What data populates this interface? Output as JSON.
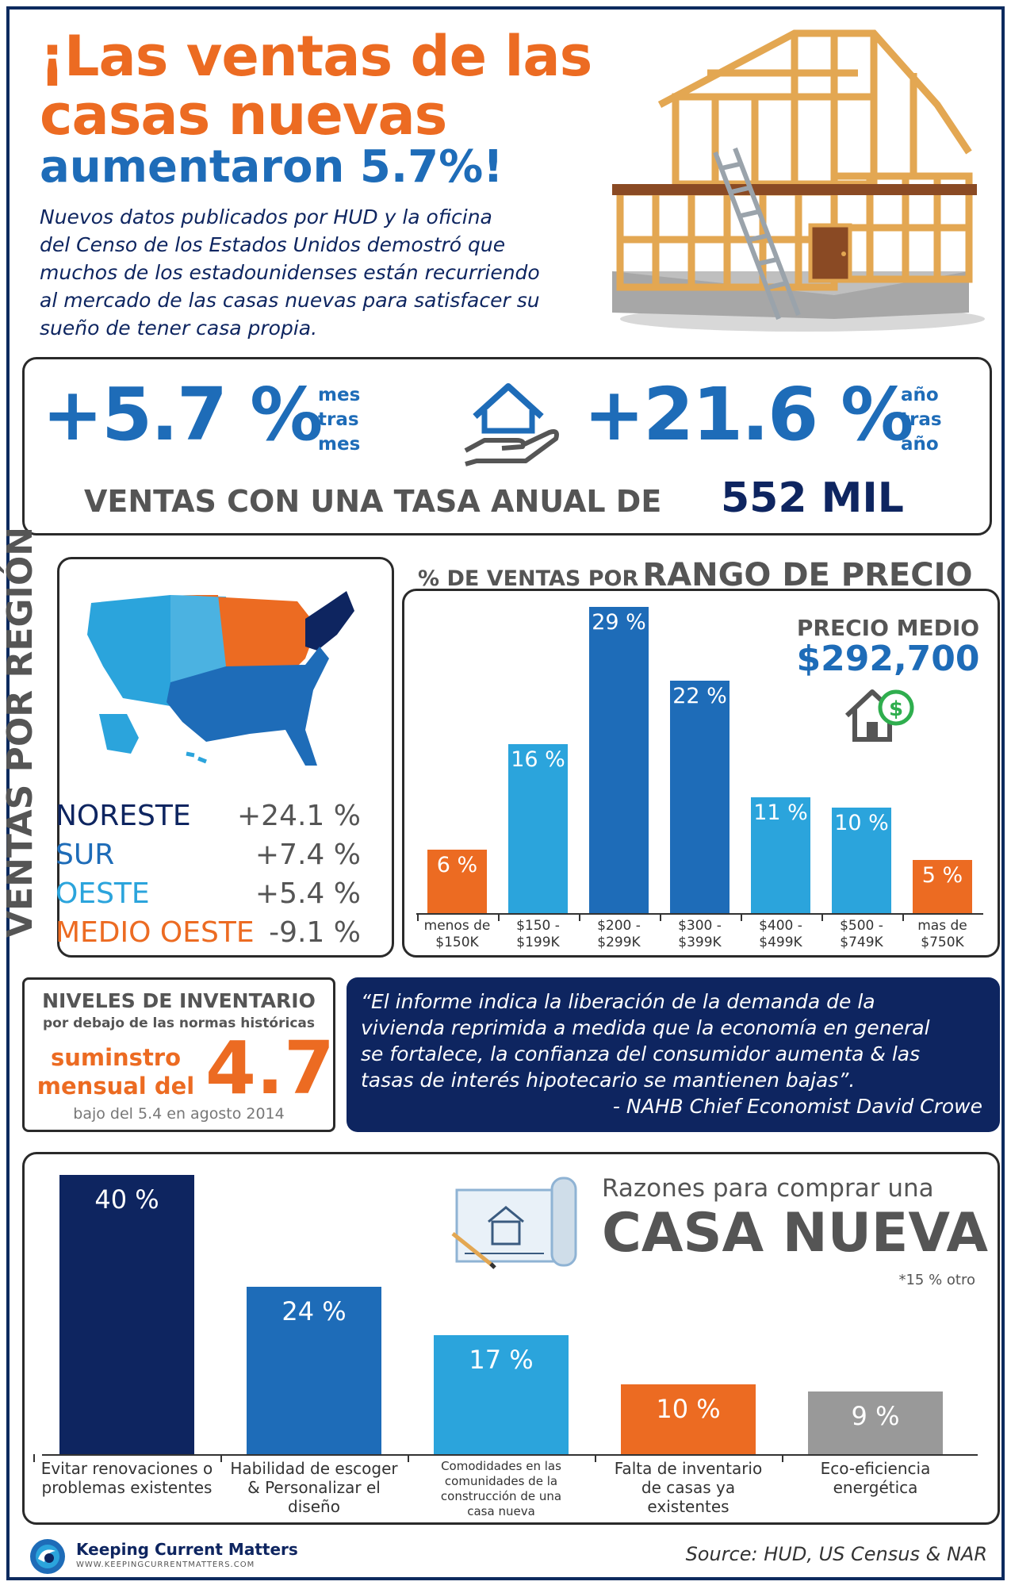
{
  "header": {
    "title_line1": "¡Las ventas de las",
    "title_line2": "casas nuevas",
    "title_line3": "aumentaron 5.7%!",
    "intro_line1": "Nuevos datos publicados por HUD y la oficina",
    "intro_line2": "del Censo de los Estados Unidos demostró que",
    "intro_line3": "muchos de los estadounidenses están recurriendo",
    "intro_line4": "al mercado de las casas nuevas para satisfacer su",
    "intro_line5": "sueño de tener casa propia."
  },
  "stats": {
    "mom_value": "+5.7 %",
    "mom_l1": "mes",
    "mom_l2": "tras",
    "mom_l3": "mes",
    "yoy_value": "+21.6 %",
    "yoy_l1": "año",
    "yoy_l2": "tras",
    "yoy_l3": "año",
    "annual_label": "VENTAS CON UNA TASA ANUAL DE",
    "annual_value": "552 MIL"
  },
  "regions": {
    "vertical_title": "VENTAS POR REGIÓN",
    "rows": [
      {
        "name": "NORESTE",
        "value": "+24.1 %",
        "color": "#0e2560"
      },
      {
        "name": "SUR",
        "value": "+7.4 %",
        "color": "#1e6cb8"
      },
      {
        "name": "OESTE",
        "value": "+5.4 %",
        "color": "#2ba4dc"
      },
      {
        "name": "MEDIO OESTE",
        "value": "-9.1 %",
        "color": "#ec6b22"
      }
    ]
  },
  "price": {
    "title_small": "% DE VENTAS POR",
    "title_big": "RANGO DE PRECIO",
    "median_label": "PRECIO MEDIO",
    "median_value": "$292,700"
  },
  "inventory": {
    "title": "NIVELES DE INVENTARIO",
    "subtitle": "por debajo de las normas históricas",
    "supply_l1": "suminstro",
    "supply_l2": "mensual del",
    "supply_value": "4.7",
    "note": "bajo del 5.4 en agosto 2014"
  },
  "quote": {
    "l1": "“El informe indica la liberación de la demanda de la",
    "l2": "vivienda reprimida a medida que la economía en general",
    "l3": "se fortalece, la confianza del consumidor aumenta & las",
    "l4": "tasas de interés hipotecario se mantienen bajas”.",
    "author": "- NAHB Chief Economist David Crowe"
  },
  "reasons": {
    "title_small": "Razones para comprar una",
    "title_big": "CASA NUEVA",
    "note": "*15 % otro"
  },
  "footer": {
    "brand": "Keeping Current Matters",
    "url": "WWW.KEEPINGCURRENTMATTERS.COM",
    "source": "Source: HUD, US Census & NAR"
  },
  "colors": {
    "orange": "#ec6b22",
    "blue": "#1e6cb8",
    "navy": "#0e2560",
    "light": "#2ba4dc",
    "gray": "#999999"
  },
  "chart_data": [
    {
      "type": "bar",
      "title": "% DE VENTAS POR RANGO DE PRECIO",
      "categories": [
        [
          "menos de",
          "$150K"
        ],
        [
          "$150 -",
          "$199K"
        ],
        [
          "$200 -",
          "$299K"
        ],
        [
          "$300 -",
          "$399K"
        ],
        [
          "$400 -",
          "$499K"
        ],
        [
          "$500 -",
          "$749K"
        ],
        [
          "mas de",
          "$750K"
        ]
      ],
      "values": [
        6,
        16,
        29,
        22,
        11,
        10,
        5
      ],
      "value_labels": [
        "6 %",
        "16 %",
        "29 %",
        "22 %",
        "11 %",
        "10 %",
        "5 %"
      ],
      "colors": [
        "#ec6b22",
        "#2ba4dc",
        "#1e6cb8",
        "#1e6cb8",
        "#2ba4dc",
        "#2ba4dc",
        "#ec6b22"
      ],
      "ylim": [
        0,
        29
      ]
    },
    {
      "type": "bar",
      "title": "Razones para comprar una CASA NUEVA",
      "categories": [
        [
          "Evitar renovaciones o",
          "problemas existentes"
        ],
        [
          "Habilidad de escoger",
          "& Personalizar el",
          "diseño"
        ],
        [
          "Comodidades en las",
          "comunidades de la",
          "construcción de una",
          "casa nueva"
        ],
        [
          "Falta de inventario",
          "de casas ya",
          "existentes"
        ],
        [
          "Eco-eficiencia",
          "energética"
        ]
      ],
      "values": [
        40,
        24,
        17,
        10,
        9
      ],
      "value_labels": [
        "40 %",
        "24 %",
        "17 %",
        "10 %",
        "9 %"
      ],
      "colors": [
        "#0e2560",
        "#1e6cb8",
        "#2ba4dc",
        "#ec6b22",
        "#999999"
      ],
      "ylim": [
        0,
        40
      ]
    }
  ]
}
